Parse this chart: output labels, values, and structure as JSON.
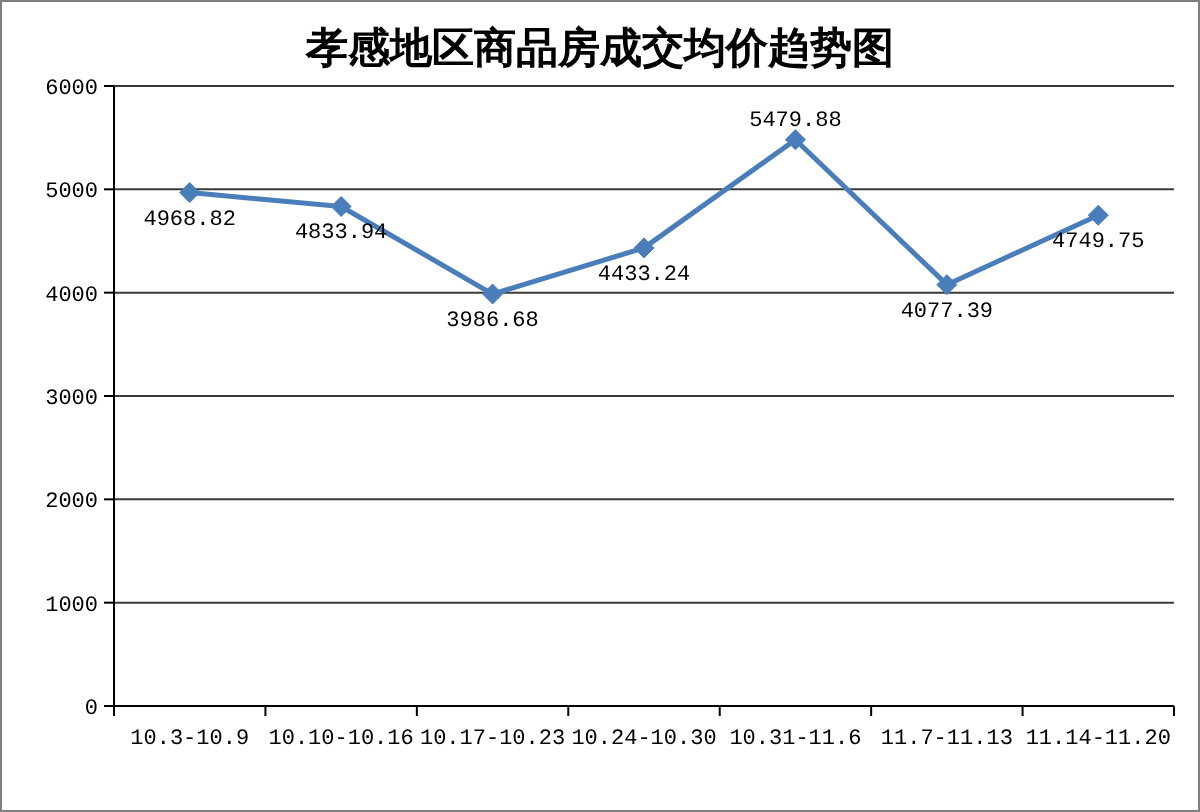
{
  "chart_data": {
    "type": "line",
    "title": "孝感地区商品房成交均价趋势图",
    "categories": [
      "10.3-10.9",
      "10.10-10.16",
      "10.17-10.23",
      "10.24-10.30",
      "10.31-11.6",
      "11.7-11.13",
      "11.14-11.20"
    ],
    "series": [
      {
        "color": "#4a7ebb",
        "values": [
          4968.82,
          4833.94,
          3986.68,
          4433.24,
          5479.88,
          4077.39,
          4749.75
        ]
      }
    ],
    "ylim": [
      0,
      6000
    ],
    "yticks": [
      0,
      1000,
      2000,
      3000,
      4000,
      5000,
      6000
    ],
    "grid": "y",
    "marker": "diamond",
    "line_style": "solid",
    "data_labels": true
  }
}
